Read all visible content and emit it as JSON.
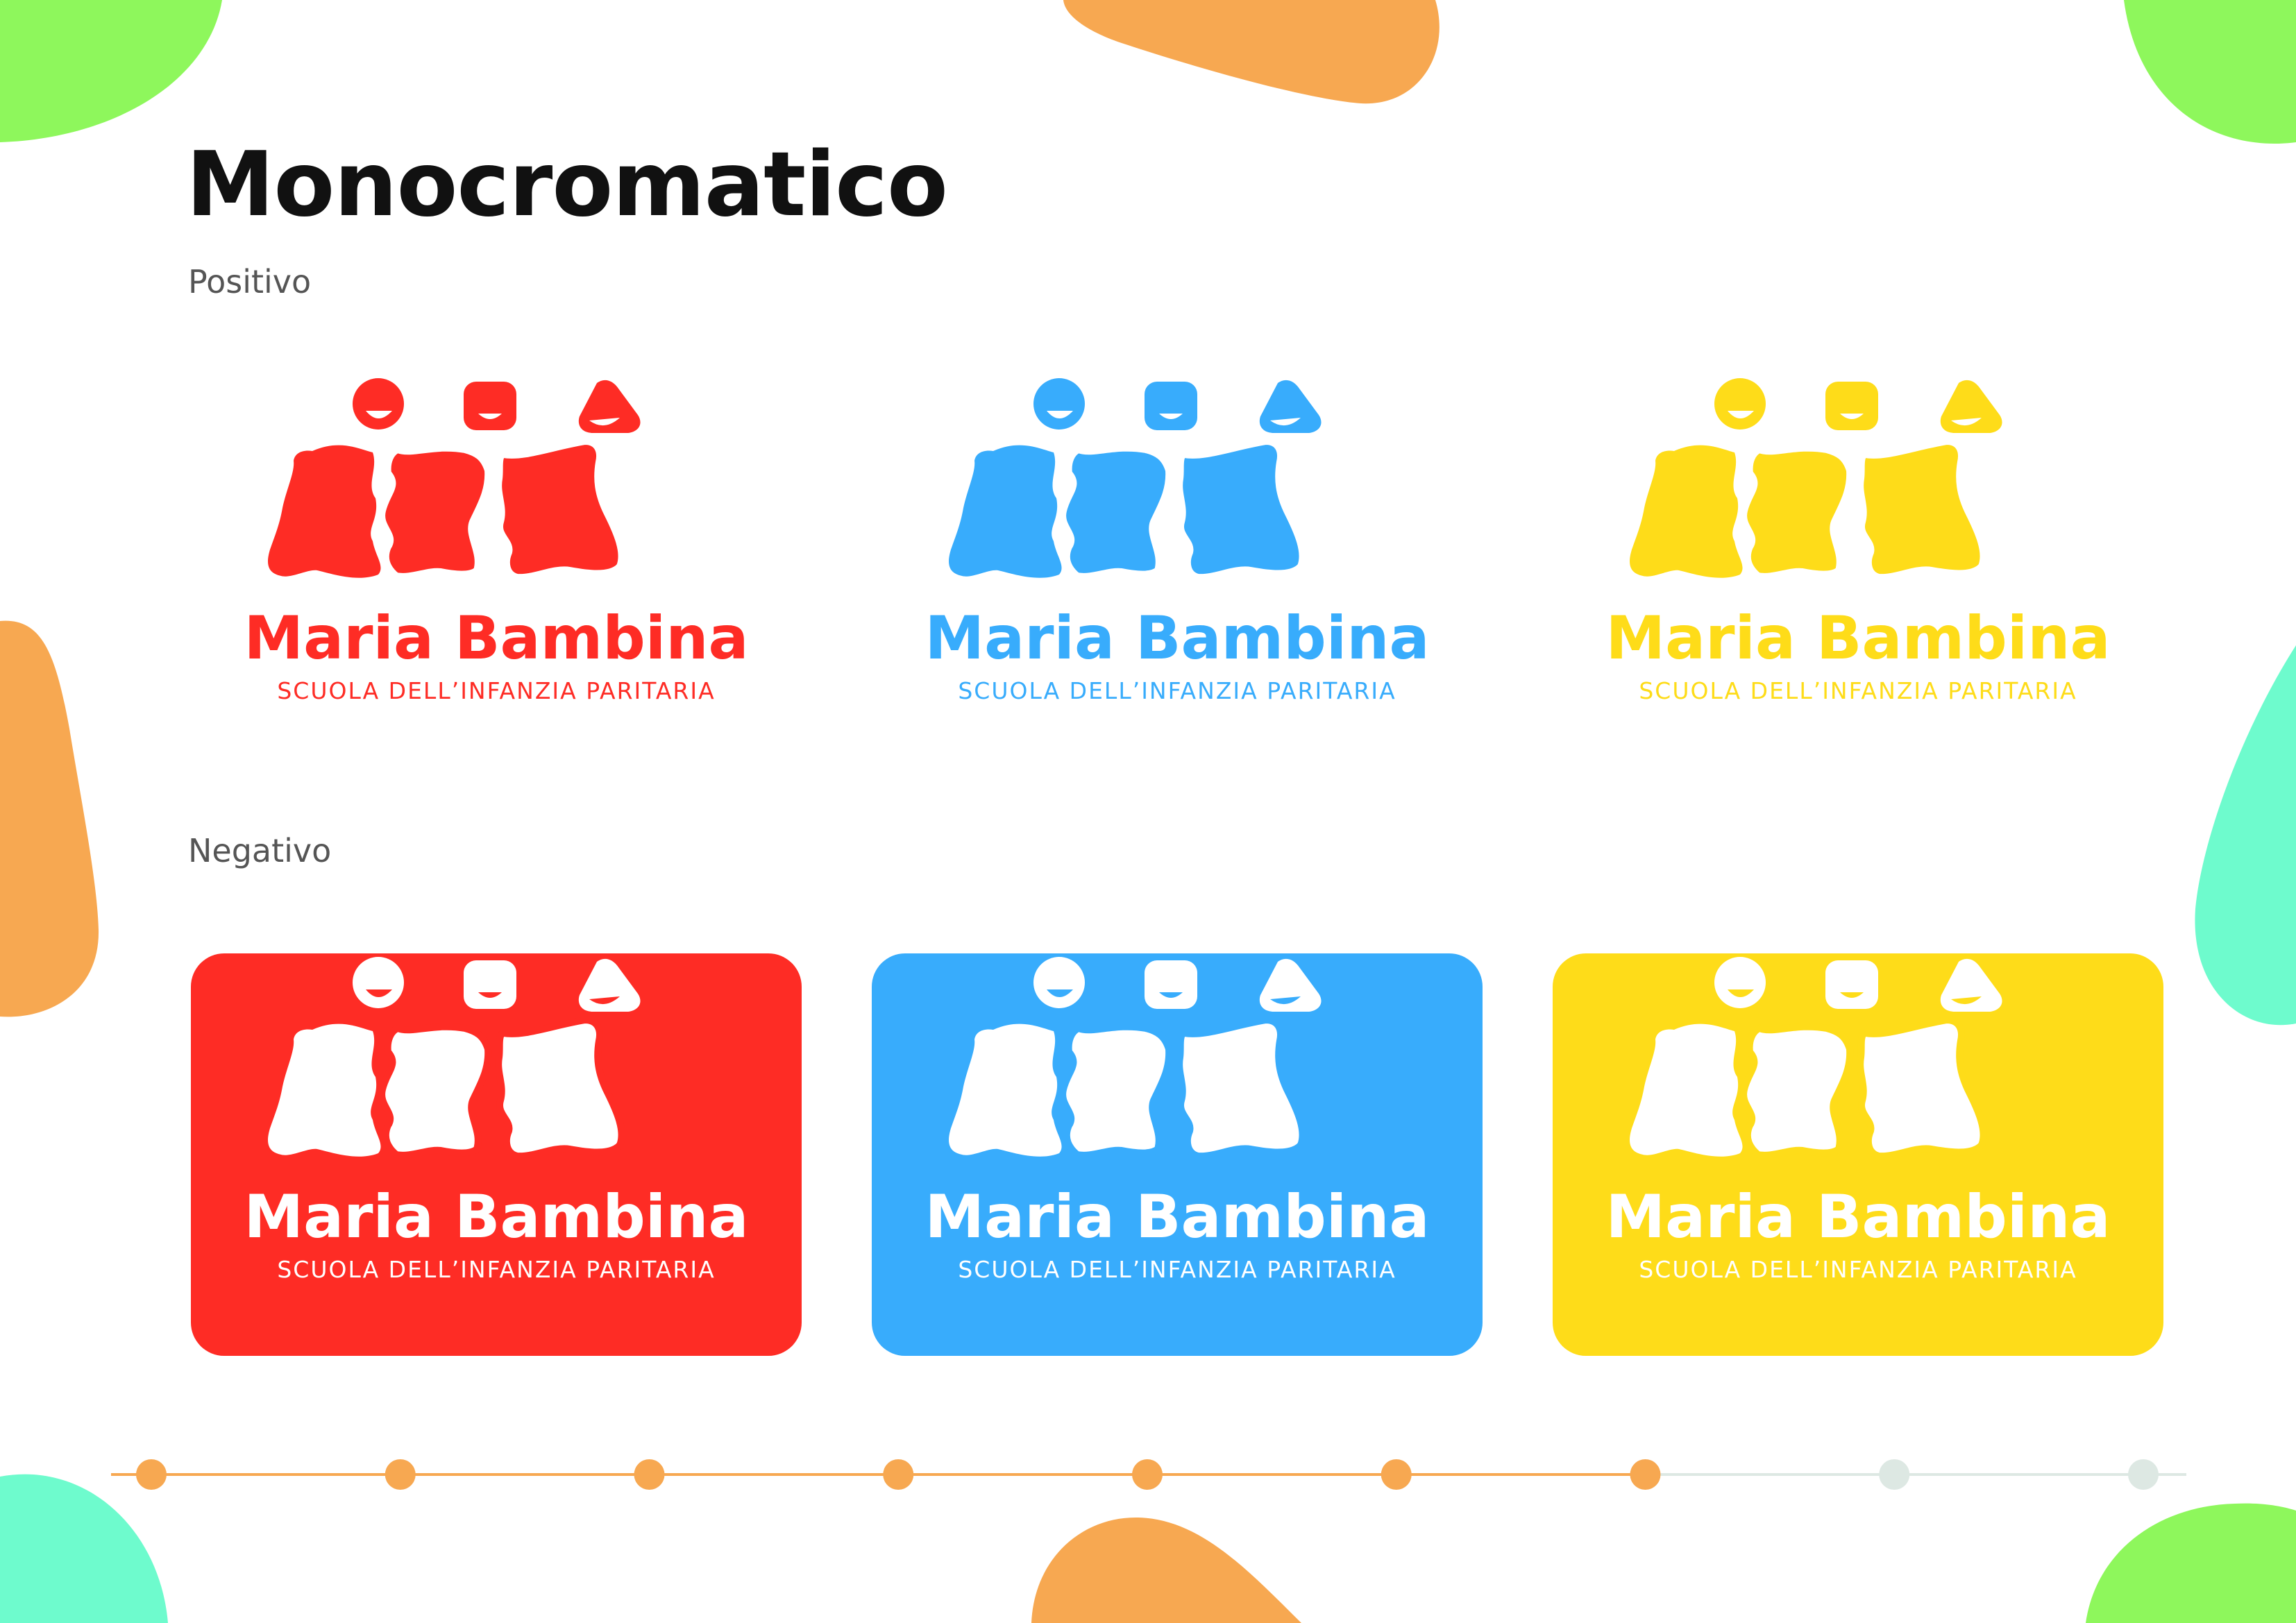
{
  "title": "Monocromatico",
  "sections": {
    "positive_label": "Positivo",
    "negative_label": "Negativo"
  },
  "logo": {
    "name": "Maria Bambina",
    "subtitle": "SCUOLA DELL’INFANZIA PARITARIA"
  },
  "colors": {
    "red": "#fe2c25",
    "blue": "#38acfc",
    "yellow": "#fedc19",
    "white": "#ffffff",
    "decor_green": "#8ef75c",
    "decor_orange": "#f7a851",
    "decor_mint": "#6efbcd",
    "progress_active": "#f7a851",
    "progress_inactive": "#dde8e3",
    "title": "#111111",
    "label": "#555555"
  },
  "progress": {
    "total_steps": 9,
    "completed_steps": 7
  }
}
